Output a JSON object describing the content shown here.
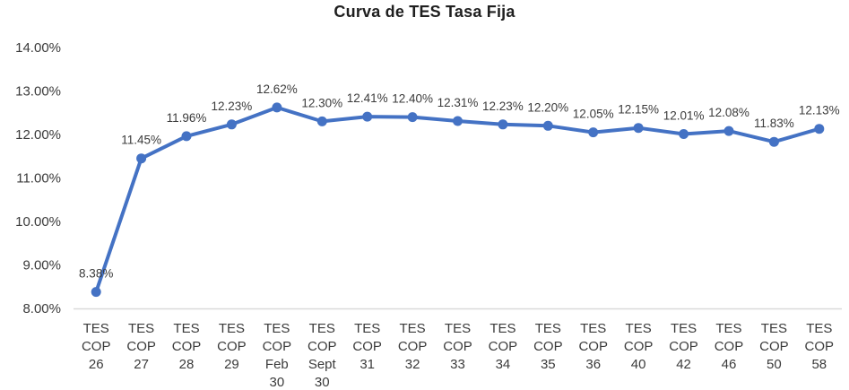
{
  "chart_data": {
    "type": "line",
    "title": "Curva de TES Tasa Fija",
    "series_name": "TES Tasa Fija",
    "categories": [
      [
        "TES",
        "COP",
        "26"
      ],
      [
        "TES",
        "COP",
        "27"
      ],
      [
        "TES",
        "COP",
        "28"
      ],
      [
        "TES",
        "COP",
        "29"
      ],
      [
        "TES",
        "COP",
        "Feb",
        "30"
      ],
      [
        "TES",
        "COP",
        "Sept",
        "30"
      ],
      [
        "TES",
        "COP",
        "31"
      ],
      [
        "TES",
        "COP",
        "32"
      ],
      [
        "TES",
        "COP",
        "33"
      ],
      [
        "TES",
        "COP",
        "34"
      ],
      [
        "TES",
        "COP",
        "35"
      ],
      [
        "TES",
        "COP",
        "36"
      ],
      [
        "TES",
        "COP",
        "40"
      ],
      [
        "TES",
        "COP",
        "42"
      ],
      [
        "TES",
        "COP",
        "46"
      ],
      [
        "TES",
        "COP",
        "50"
      ],
      [
        "TES",
        "COP",
        "58"
      ]
    ],
    "values": [
      8.38,
      11.45,
      11.96,
      12.23,
      12.62,
      12.3,
      12.41,
      12.4,
      12.31,
      12.23,
      12.2,
      12.05,
      12.15,
      12.01,
      12.08,
      11.83,
      12.13
    ],
    "data_labels": [
      "8.38%",
      "11.45%",
      "11.96%",
      "12.23%",
      "12.62%",
      "12.30%",
      "12.41%",
      "12.40%",
      "12.31%",
      "12.23%",
      "12.20%",
      "12.05%",
      "12.15%",
      "12.01%",
      "12.08%",
      "11.83%",
      "12.13%"
    ],
    "y_ticks": [
      "8.00%",
      "9.00%",
      "10.00%",
      "11.00%",
      "12.00%",
      "13.00%",
      "14.00%"
    ],
    "ylim": [
      8,
      14
    ],
    "grid": false,
    "legend": "none",
    "xlabel": "",
    "ylabel": "",
    "colors": {
      "line": "#4472C4",
      "marker": "#4472C4",
      "axis_line": "#D9D9D9",
      "tick_text": "#3B3B3B",
      "data_label_text": "#3B3B3B",
      "title_text": "#1F1F1F",
      "background": "#FFFFFF"
    }
  }
}
